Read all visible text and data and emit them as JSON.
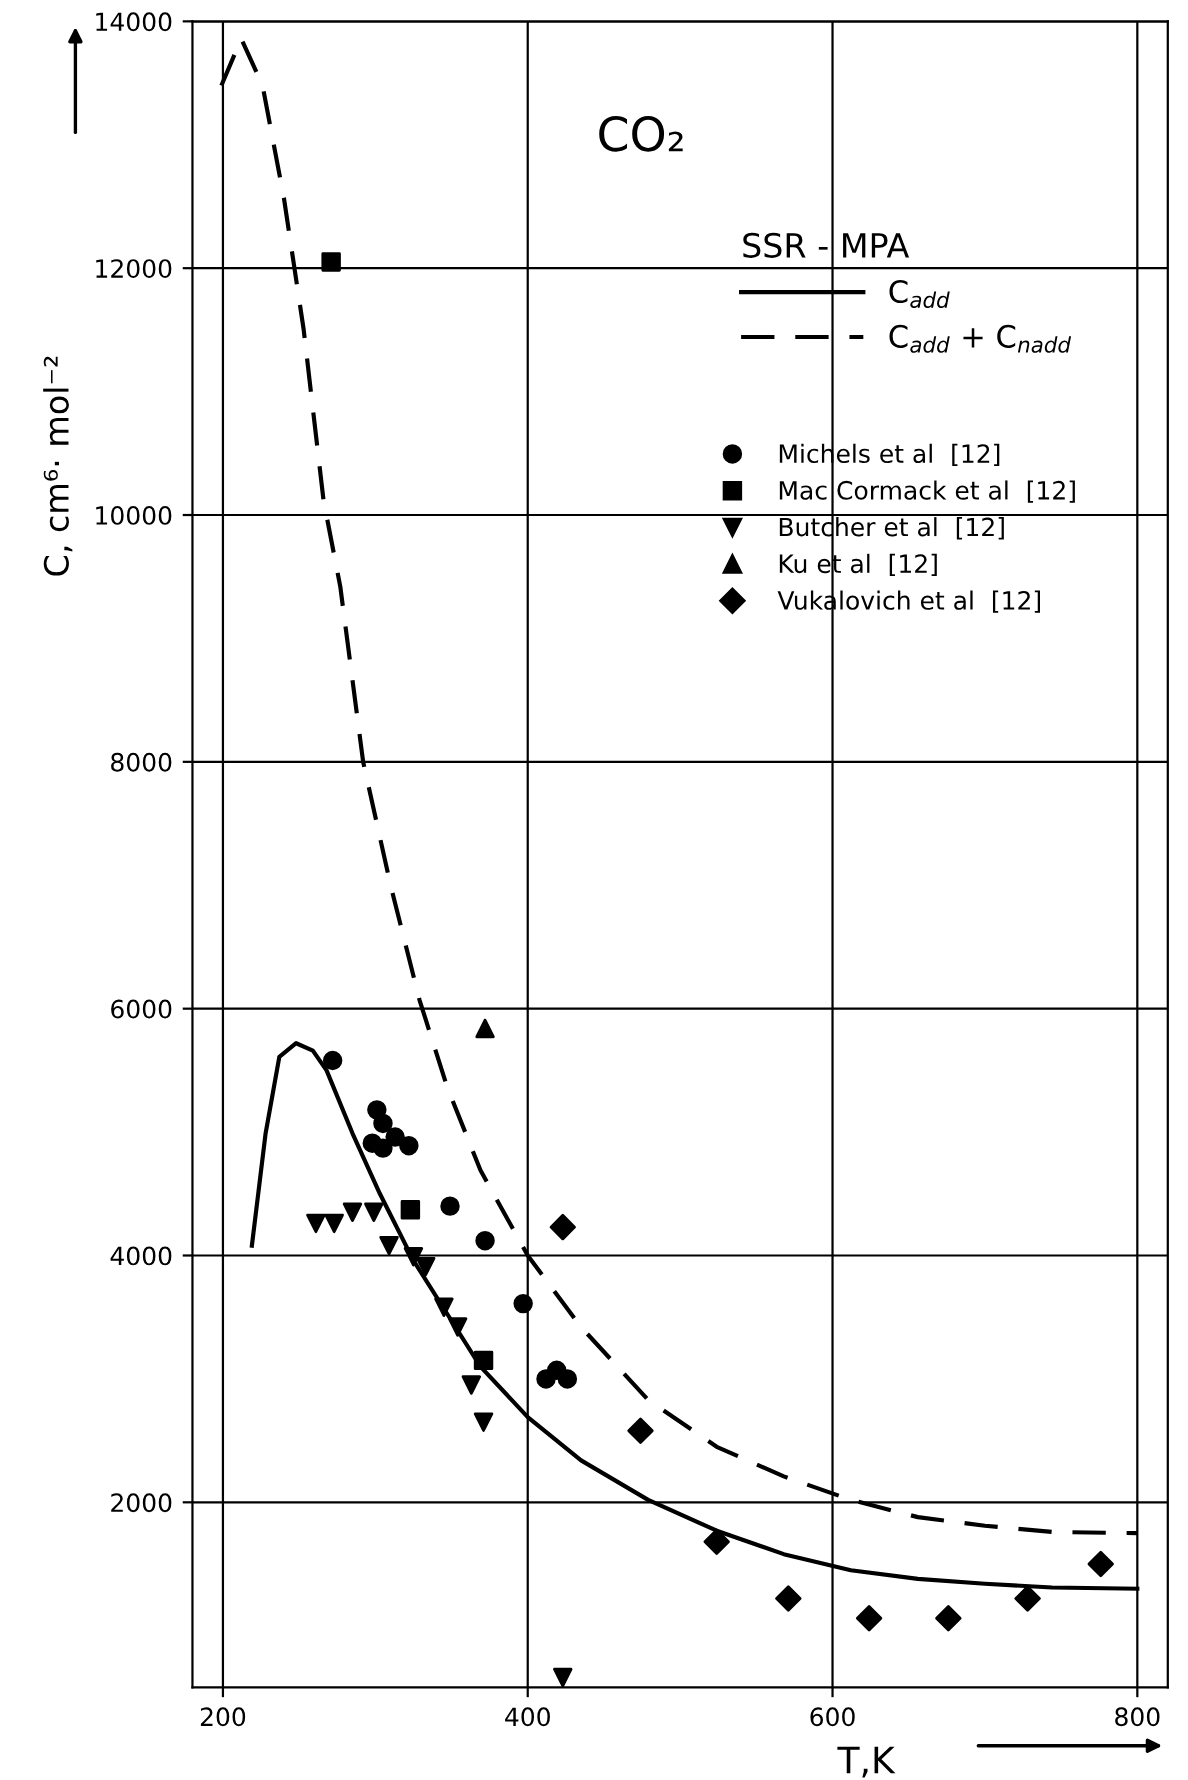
{
  "chart_data": {
    "type": "scatter",
    "title": "CO₂",
    "xlabel": "T,K",
    "ylabel": "C, cm⁶· mol⁻²",
    "legend_title": "SSR - MPA",
    "xlim": [
      180,
      820
    ],
    "ylim": [
      500,
      14000
    ],
    "xticks": [
      200,
      400,
      600,
      800
    ],
    "yticks": [
      2000,
      4000,
      6000,
      8000,
      10000,
      12000,
      14000
    ],
    "grid": true,
    "legend": "top right",
    "series": [
      {
        "name": "C$_{add}$",
        "type": "line",
        "line_style": "solid",
        "marker": "none",
        "color": "#000000",
        "x": [
          219,
          228,
          237,
          248,
          259,
          268,
          285,
          303,
          325,
          347,
          369,
          400,
          435,
          479,
          524,
          568,
          612,
          656,
          700,
          744,
          800
        ],
        "values": [
          4080,
          4990,
          5610,
          5720,
          5660,
          5500,
          4990,
          4500,
          3960,
          3530,
          3100,
          2690,
          2340,
          2020,
          1770,
          1580,
          1450,
          1380,
          1340,
          1310,
          1300
        ]
      },
      {
        "name": "C$_{add}$ + C$_{nadd}$",
        "type": "line",
        "line_style": "dashed",
        "marker": "none",
        "color": "#000000",
        "x": [
          199,
          212,
          226,
          240,
          253,
          266,
          277,
          292,
          310,
          329,
          347,
          369,
          400,
          435,
          479,
          524,
          568,
          612,
          656,
          700,
          744,
          800
        ],
        "values": [
          13480,
          13860,
          13480,
          12570,
          11500,
          10120,
          9420,
          8000,
          7000,
          6070,
          5370,
          4690,
          4000,
          3420,
          2830,
          2450,
          2210,
          2020,
          1880,
          1810,
          1760,
          1750
        ]
      },
      {
        "name": "Michels et al  [12]",
        "marker": "circle",
        "color": "#000000",
        "x": [
          272,
          301,
          305,
          298,
          305,
          313,
          322,
          349,
          372,
          397,
          412,
          419,
          426
        ],
        "values": [
          5580,
          5180,
          5070,
          4910,
          4870,
          4960,
          4890,
          4400,
          4120,
          3610,
          3000,
          3070,
          3000
        ]
      },
      {
        "name": "Mac Cormack et al  [12]",
        "marker": "square",
        "color": "#000000",
        "x": [
          271,
          323,
          371
        ],
        "values": [
          12050,
          4370,
          3150
        ]
      },
      {
        "name": "Butcher et al  [12]",
        "marker": "triangle_down",
        "color": "#000000",
        "x": [
          261,
          273,
          285,
          299,
          309,
          325,
          333,
          345,
          354,
          363,
          371,
          423
        ],
        "values": [
          4260,
          4260,
          4350,
          4350,
          4080,
          3990,
          3910,
          3580,
          3420,
          2950,
          2650,
          580
        ]
      },
      {
        "name": "Ku et al  [12]",
        "marker": "triangle",
        "color": "#000000",
        "x": [
          372
        ],
        "values": [
          5840
        ]
      },
      {
        "name": "Vukalovich et al  [12]",
        "marker": "diamond",
        "color": "#000000",
        "x": [
          423,
          474,
          524,
          571,
          624,
          676,
          728,
          776
        ],
        "values": [
          4230,
          2580,
          1680,
          1220,
          1060,
          1060,
          1220,
          1500
        ]
      }
    ]
  }
}
